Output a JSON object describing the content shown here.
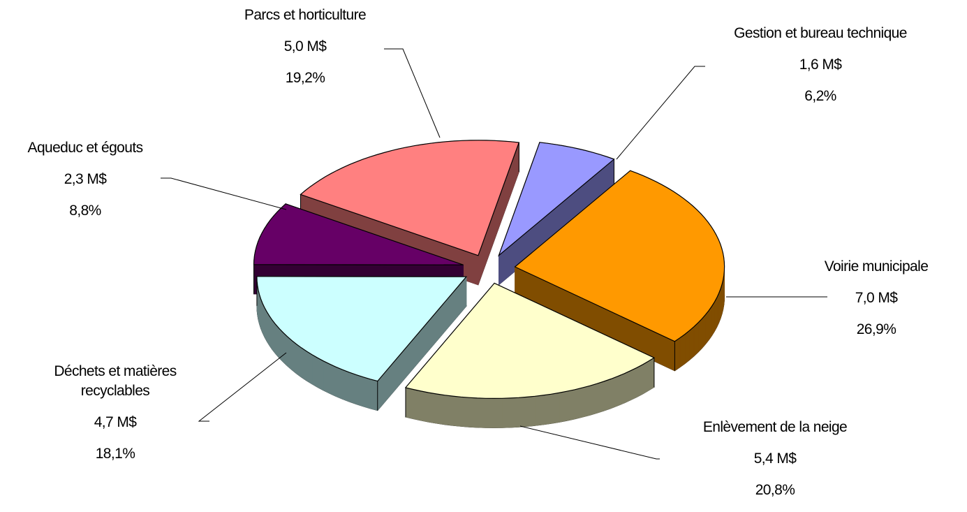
{
  "chart_data": {
    "type": "pie3d",
    "categories": [
      "Parcs et horticulture",
      "Gestion et bureau technique",
      "Voirie municipale",
      "Enlèvement de la neige",
      "Déchets et matières recyclables",
      "Aqueduc et égouts"
    ],
    "values": [
      5.0,
      1.6,
      7.0,
      5.4,
      4.7,
      2.3
    ],
    "value_labels": [
      "5,0 M$",
      "1,6 M$",
      "7,0 M$",
      "5,4 M$",
      "4,7 M$",
      "2,3 M$"
    ],
    "percentages": [
      19.2,
      6.2,
      26.9,
      20.8,
      18.1,
      8.8
    ],
    "percentage_labels": [
      "19,2%",
      "6,2%",
      "26,9%",
      "20,8%",
      "18,1%",
      "8,8%"
    ],
    "colors": [
      "#ff8080",
      "#9999ff",
      "#ff9900",
      "#ffffcc",
      "#ccffff",
      "#660066"
    ]
  }
}
